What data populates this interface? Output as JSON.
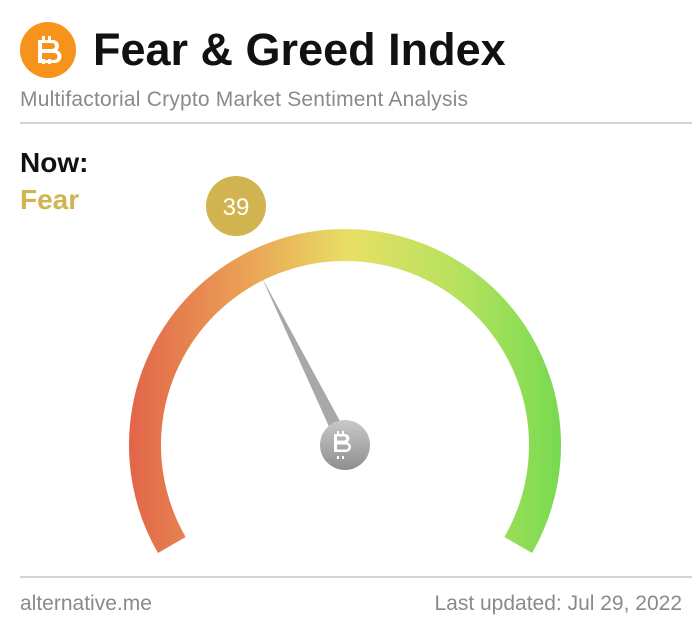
{
  "header": {
    "logo_icon": "bitcoin-icon",
    "title": "Fear & Greed Index",
    "subtitle": "Multifactorial Crypto Market Sentiment Analysis"
  },
  "now": {
    "label": "Now:",
    "classification": "Fear",
    "value": 39,
    "value_text": "39"
  },
  "gauge": {
    "min": 0,
    "max": 100,
    "center_icon": "bitcoin-icon"
  },
  "footer": {
    "source": "alternative.me",
    "last_updated": "Last updated: Jul 29, 2022"
  },
  "colors": {
    "bitcoin_orange": "#f7931a",
    "fear_gold": "#d1b44f",
    "extreme_fear": "#e2654a",
    "neutral": "#e7df65",
    "extreme_greed": "#72d94f",
    "needle_gray": "#a8a8a8"
  }
}
